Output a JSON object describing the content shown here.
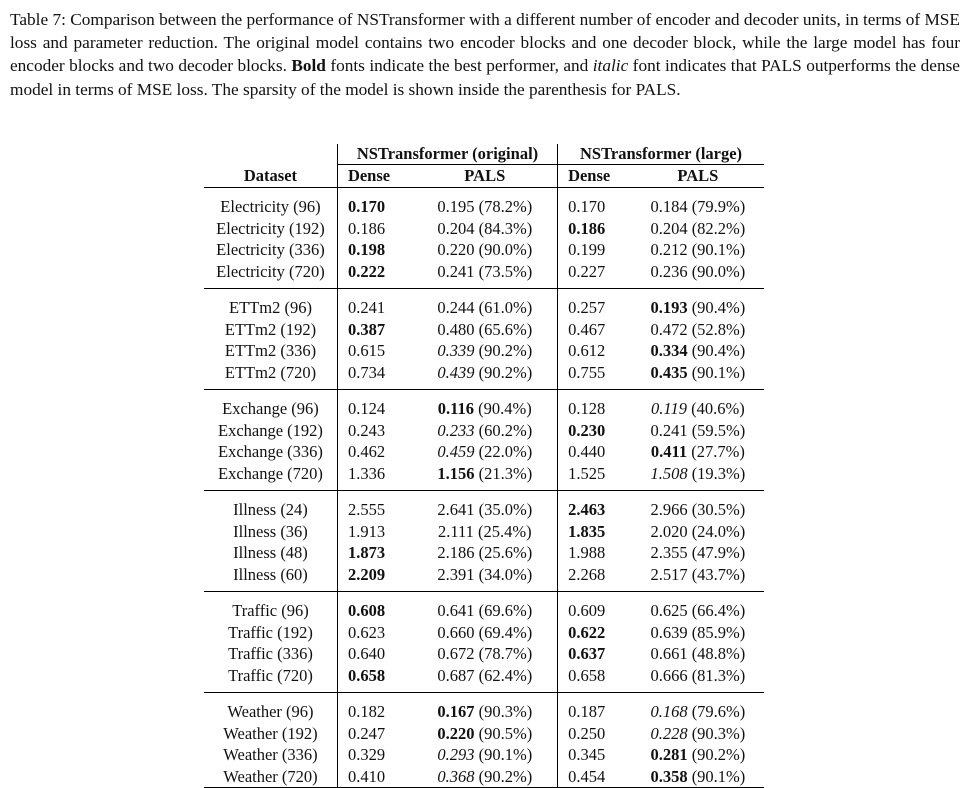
{
  "caption": {
    "label": "Table 7:",
    "text_a": " Comparison between the performance of NSTransformer with a different number of encoder and decoder units, in terms of MSE loss and parameter reduction. The original model contains two encoder blocks and one decoder block, while the large model has four encoder blocks and two decoder blocks. ",
    "bold_word": "Bold",
    "text_b": " fonts indicate the best performer, and ",
    "italic_word": "italic",
    "text_c": " font indicates that PALS outperforms the dense model in terms of MSE loss. The sparsity of the model is shown inside the parenthesis for PALS."
  },
  "table": {
    "group_headers": [
      "NSTransformer (original)",
      "NSTransformer (large)"
    ],
    "columns": [
      "Dataset",
      "Dense",
      "PALS",
      "Dense",
      "PALS"
    ],
    "groups": [
      {
        "rows": [
          {
            "dataset": "Electricity (96)",
            "d1": "0.170",
            "d1b": true,
            "p1": "0.195",
            "p1s": "(78.2%)",
            "d2": "0.170",
            "p2": "0.184",
            "p2s": "(79.9%)"
          },
          {
            "dataset": "Electricity (192)",
            "d1": "0.186",
            "p1": "0.204",
            "p1s": "(84.3%)",
            "d2": "0.186",
            "d2b": true,
            "p2": "0.204",
            "p2s": "(82.2%)"
          },
          {
            "dataset": "Electricity (336)",
            "d1": "0.198",
            "d1b": true,
            "p1": "0.220",
            "p1s": "(90.0%)",
            "d2": "0.199",
            "p2": "0.212",
            "p2s": "(90.1%)"
          },
          {
            "dataset": "Electricity (720)",
            "d1": "0.222",
            "d1b": true,
            "p1": "0.241",
            "p1s": "(73.5%)",
            "d2": "0.227",
            "p2": "0.236",
            "p2s": "(90.0%)"
          }
        ]
      },
      {
        "rows": [
          {
            "dataset": "ETTm2 (96)",
            "d1": "0.241",
            "p1": "0.244",
            "p1s": "(61.0%)",
            "d2": "0.257",
            "p2": "0.193",
            "p2b": true,
            "p2s": "(90.4%)"
          },
          {
            "dataset": "ETTm2 (192)",
            "d1": "0.387",
            "d1b": true,
            "p1": "0.480",
            "p1s": "(65.6%)",
            "d2": "0.467",
            "p2": "0.472",
            "p2s": "(52.8%)"
          },
          {
            "dataset": "ETTm2 (336)",
            "d1": "0.615",
            "p1": "0.339",
            "p1i": true,
            "p1s": "(90.2%)",
            "d2": "0.612",
            "p2": "0.334",
            "p2b": true,
            "p2s": "(90.4%)"
          },
          {
            "dataset": "ETTm2 (720)",
            "d1": "0.734",
            "p1": "0.439",
            "p1i": true,
            "p1s": "(90.2%)",
            "d2": "0.755",
            "p2": "0.435",
            "p2b": true,
            "p2s": "(90.1%)"
          }
        ]
      },
      {
        "rows": [
          {
            "dataset": "Exchange (96)",
            "d1": "0.124",
            "p1": "0.116",
            "p1b": true,
            "p1s": "(90.4%)",
            "d2": "0.128",
            "p2": "0.119",
            "p2i": true,
            "p2s": "(40.6%)"
          },
          {
            "dataset": "Exchange (192)",
            "d1": "0.243",
            "p1": "0.233",
            "p1i": true,
            "p1s": "(60.2%)",
            "d2": "0.230",
            "d2b": true,
            "p2": "0.241",
            "p2s": "(59.5%)"
          },
          {
            "dataset": "Exchange (336)",
            "d1": "0.462",
            "p1": "0.459",
            "p1i": true,
            "p1s": "(22.0%)",
            "d2": "0.440",
            "p2": "0.411",
            "p2b": true,
            "p2s": "(27.7%)"
          },
          {
            "dataset": "Exchange (720)",
            "d1": "1.336",
            "p1": "1.156",
            "p1b": true,
            "p1s": "(21.3%)",
            "d2": "1.525",
            "p2": "1.508",
            "p2i": true,
            "p2s": "(19.3%)"
          }
        ]
      },
      {
        "rows": [
          {
            "dataset": "Illness (24)",
            "d1": "2.555",
            "p1": "2.641",
            "p1s": "(35.0%)",
            "d2": "2.463",
            "d2b": true,
            "p2": "2.966",
            "p2s": "(30.5%)"
          },
          {
            "dataset": "Illness (36)",
            "d1": "1.913",
            "p1": "2.111",
            "p1s": "(25.4%)",
            "d2": "1.835",
            "d2b": true,
            "p2": "2.020",
            "p2s": "(24.0%)"
          },
          {
            "dataset": "Illness (48)",
            "d1": "1.873",
            "d1b": true,
            "p1": "2.186",
            "p1s": "(25.6%)",
            "d2": "1.988",
            "p2": "2.355",
            "p2s": "(47.9%)"
          },
          {
            "dataset": "Illness (60)",
            "d1": "2.209",
            "d1b": true,
            "p1": "2.391",
            "p1s": "(34.0%)",
            "d2": "2.268",
            "p2": "2.517",
            "p2s": "(43.7%)"
          }
        ]
      },
      {
        "rows": [
          {
            "dataset": "Traffic (96)",
            "d1": "0.608",
            "d1b": true,
            "p1": "0.641",
            "p1s": "(69.6%)",
            "d2": "0.609",
            "p2": "0.625",
            "p2s": "(66.4%)"
          },
          {
            "dataset": "Traffic (192)",
            "d1": "0.623",
            "p1": "0.660",
            "p1s": "(69.4%)",
            "d2": "0.622",
            "d2b": true,
            "p2": "0.639",
            "p2s": "(85.9%)"
          },
          {
            "dataset": "Traffic (336)",
            "d1": "0.640",
            "p1": "0.672",
            "p1s": "(78.7%)",
            "d2": "0.637",
            "d2b": true,
            "p2": "0.661",
            "p2s": "(48.8%)"
          },
          {
            "dataset": "Traffic (720)",
            "d1": "0.658",
            "d1b": true,
            "p1": "0.687",
            "p1s": "(62.4%)",
            "d2": "0.658",
            "p2": "0.666",
            "p2s": "(81.3%)"
          }
        ]
      },
      {
        "rows": [
          {
            "dataset": "Weather (96)",
            "d1": "0.182",
            "p1": "0.167",
            "p1b": true,
            "p1s": "(90.3%)",
            "d2": "0.187",
            "p2": "0.168",
            "p2i": true,
            "p2s": "(79.6%)"
          },
          {
            "dataset": "Weather (192)",
            "d1": "0.247",
            "p1": "0.220",
            "p1b": true,
            "p1s": "(90.5%)",
            "d2": "0.250",
            "p2": "0.228",
            "p2i": true,
            "p2s": "(90.3%)"
          },
          {
            "dataset": "Weather (336)",
            "d1": "0.329",
            "p1": "0.293",
            "p1i": true,
            "p1s": "(90.1%)",
            "d2": "0.345",
            "p2": "0.281",
            "p2b": true,
            "p2s": "(90.2%)"
          },
          {
            "dataset": "Weather (720)",
            "d1": "0.410",
            "p1": "0.368",
            "p1i": true,
            "p1s": "(90.2%)",
            "d2": "0.454",
            "p2": "0.358",
            "p2b": true,
            "p2s": "(90.1%)"
          }
        ]
      }
    ]
  }
}
